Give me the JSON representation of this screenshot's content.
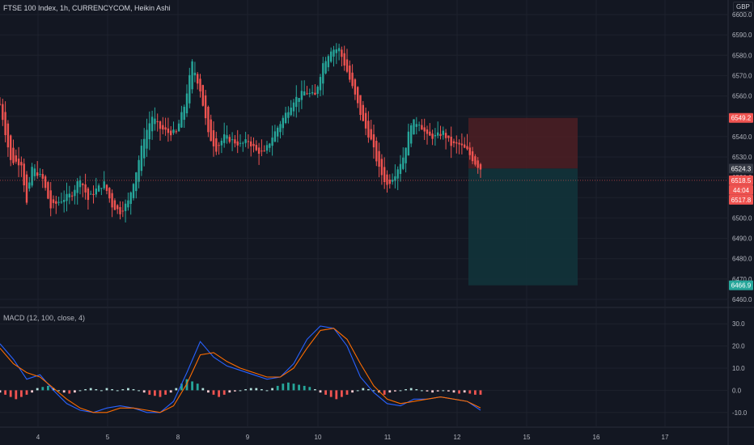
{
  "header": {
    "title": "FTSE 100 Index, 1h, CURRENCYCOM, Heikin Ashi",
    "currency": "GBP"
  },
  "macd_title": "MACD (12, 100, close, 4)",
  "colors": {
    "background": "#131722",
    "up": "#26a69a",
    "down": "#ef5350",
    "macd_line": "#2962ff",
    "signal_line": "#ff6d00",
    "stop_zone": "#4a1e24",
    "target_zone": "#12333a",
    "grid": "#1e222d"
  },
  "chart_data": [
    {
      "type": "candlestick",
      "title": "FTSE 100 Index, 1h, CURRENCYCOM, Heikin Ashi",
      "ylim": [
        6460,
        6600
      ],
      "y_ticks": [
        6460,
        6470,
        6480,
        6490,
        6500,
        6510,
        6520,
        6530,
        6540,
        6550,
        6560,
        6570,
        6580,
        6590,
        6600
      ],
      "x_ticks": [
        "4",
        "5",
        "8",
        "9",
        "10",
        "11",
        "12",
        "15",
        "16",
        "17"
      ],
      "close_path": [
        [
          0,
          6556
        ],
        [
          4,
          6528
        ],
        [
          8,
          6527
        ],
        [
          10,
          6507
        ],
        [
          12,
          6525
        ],
        [
          16,
          6519
        ],
        [
          19,
          6505
        ],
        [
          22,
          6508
        ],
        [
          27,
          6512
        ],
        [
          30,
          6520
        ],
        [
          33,
          6509
        ],
        [
          36,
          6514
        ],
        [
          39,
          6517
        ],
        [
          42,
          6506
        ],
        [
          45,
          6503
        ],
        [
          48,
          6508
        ],
        [
          51,
          6523
        ],
        [
          54,
          6540
        ],
        [
          57,
          6550
        ],
        [
          60,
          6544
        ],
        [
          63,
          6542
        ],
        [
          66,
          6542
        ],
        [
          69,
          6555
        ],
        [
          72,
          6576
        ],
        [
          75,
          6563
        ],
        [
          78,
          6541
        ],
        [
          81,
          6534
        ],
        [
          84,
          6540
        ],
        [
          87,
          6538
        ],
        [
          90,
          6536
        ],
        [
          93,
          6538
        ],
        [
          96,
          6533
        ],
        [
          99,
          6532
        ],
        [
          102,
          6540
        ],
        [
          106,
          6549
        ],
        [
          110,
          6558
        ],
        [
          114,
          6562
        ],
        [
          118,
          6560
        ],
        [
          121,
          6576
        ],
        [
          124,
          6583
        ],
        [
          127,
          6583
        ],
        [
          130,
          6572
        ],
        [
          133,
          6560
        ],
        [
          136,
          6547
        ],
        [
          139,
          6538
        ],
        [
          142,
          6524
        ],
        [
          145,
          6516
        ],
        [
          148,
          6522
        ],
        [
          151,
          6530
        ],
        [
          154,
          6547
        ],
        [
          157,
          6547
        ],
        [
          160,
          6540
        ],
        [
          163,
          6540
        ],
        [
          166,
          6542
        ],
        [
          169,
          6536
        ],
        [
          172,
          6536
        ],
        [
          175,
          6533
        ],
        [
          178,
          6527
        ],
        [
          180,
          6524.3
        ]
      ],
      "last_price": 6524.3,
      "price_labels": [
        6549.2,
        6524.3,
        6518.5,
        6517.8,
        6466.9
      ],
      "countdown": "44:04",
      "position": {
        "side": "short",
        "entry": 6524.3,
        "stop": 6549.2,
        "target": 6466.9
      }
    },
    {
      "type": "line",
      "title": "MACD (12, 100, close, 4)",
      "ylim": [
        -13,
        33
      ],
      "y_ticks": [
        -10.0,
        0.0,
        10.0,
        20.0,
        30.0
      ],
      "y_tick_labels": [
        "-10.0",
        "0.0",
        "10.0",
        "20.0",
        "30.0"
      ],
      "series": [
        {
          "values": [
            [
              0,
              21
            ],
            [
              5,
              14
            ],
            [
              10,
              5
            ],
            [
              15,
              7
            ],
            [
              20,
              0
            ],
            [
              25,
              -6
            ],
            [
              30,
              -9
            ],
            [
              35,
              -10
            ],
            [
              40,
              -8
            ],
            [
              45,
              -7
            ],
            [
              50,
              -8
            ],
            [
              55,
              -10
            ],
            [
              60,
              -10
            ],
            [
              65,
              -5
            ],
            [
              70,
              8
            ],
            [
              75,
              22
            ],
            [
              80,
              15
            ],
            [
              85,
              11
            ],
            [
              90,
              9
            ],
            [
              95,
              7
            ],
            [
              100,
              5
            ],
            [
              105,
              6
            ],
            [
              110,
              12
            ],
            [
              115,
              23
            ],
            [
              120,
              29
            ],
            [
              125,
              28
            ],
            [
              130,
              20
            ],
            [
              135,
              6
            ],
            [
              140,
              -1
            ],
            [
              145,
              -6
            ],
            [
              150,
              -7
            ],
            [
              155,
              -4
            ],
            [
              160,
              -4
            ],
            [
              165,
              -3
            ],
            [
              170,
              -4
            ],
            [
              175,
              -5
            ],
            [
              180,
              -9
            ]
          ]
        },
        {
          "values": [
            [
              0,
              19
            ],
            [
              5,
              12
            ],
            [
              10,
              8
            ],
            [
              15,
              6
            ],
            [
              20,
              1
            ],
            [
              25,
              -4
            ],
            [
              30,
              -8
            ],
            [
              35,
              -10
            ],
            [
              40,
              -10
            ],
            [
              45,
              -8
            ],
            [
              50,
              -8
            ],
            [
              55,
              -9
            ],
            [
              60,
              -10
            ],
            [
              65,
              -7
            ],
            [
              70,
              3
            ],
            [
              75,
              16
            ],
            [
              80,
              17
            ],
            [
              85,
              13
            ],
            [
              90,
              10
            ],
            [
              95,
              8
            ],
            [
              100,
              6
            ],
            [
              105,
              6
            ],
            [
              110,
              10
            ],
            [
              115,
              19
            ],
            [
              120,
              27
            ],
            [
              125,
              28
            ],
            [
              130,
              23
            ],
            [
              135,
              12
            ],
            [
              140,
              2
            ],
            [
              145,
              -4
            ],
            [
              150,
              -6
            ],
            [
              155,
              -5
            ],
            [
              160,
              -4
            ],
            [
              165,
              -3
            ],
            [
              170,
              -4
            ],
            [
              175,
              -5
            ],
            [
              180,
              -8
            ]
          ]
        }
      ],
      "histogram": [
        [
          0,
          -1
        ],
        [
          2,
          -2
        ],
        [
          4,
          -3
        ],
        [
          6,
          -4
        ],
        [
          8,
          -3
        ],
        [
          10,
          -2
        ],
        [
          12,
          -1
        ],
        [
          14,
          1
        ],
        [
          16,
          1.5
        ],
        [
          18,
          2
        ],
        [
          20,
          1
        ],
        [
          22,
          0
        ],
        [
          24,
          -1
        ],
        [
          26,
          -1.5
        ],
        [
          28,
          -1
        ],
        [
          30,
          0
        ],
        [
          32,
          0.5
        ],
        [
          34,
          1
        ],
        [
          36,
          0.5
        ],
        [
          38,
          0
        ],
        [
          40,
          1
        ],
        [
          42,
          0.5
        ],
        [
          44,
          0
        ],
        [
          46,
          0.5
        ],
        [
          48,
          1
        ],
        [
          50,
          0.5
        ],
        [
          52,
          0
        ],
        [
          54,
          -1
        ],
        [
          56,
          -2
        ],
        [
          58,
          -2.5
        ],
        [
          60,
          -3
        ],
        [
          62,
          -2
        ],
        [
          64,
          -1
        ],
        [
          66,
          1
        ],
        [
          68,
          3
        ],
        [
          70,
          5
        ],
        [
          72,
          4
        ],
        [
          74,
          3
        ],
        [
          76,
          1
        ],
        [
          78,
          -1
        ],
        [
          80,
          -2
        ],
        [
          82,
          -3
        ],
        [
          84,
          -2
        ],
        [
          86,
          -1
        ],
        [
          88,
          -0.5
        ],
        [
          90,
          0
        ],
        [
          92,
          0.5
        ],
        [
          94,
          1
        ],
        [
          96,
          1
        ],
        [
          98,
          0.5
        ],
        [
          100,
          0
        ],
        [
          102,
          1
        ],
        [
          104,
          2
        ],
        [
          106,
          3
        ],
        [
          108,
          3.5
        ],
        [
          110,
          3
        ],
        [
          112,
          2.5
        ],
        [
          114,
          2
        ],
        [
          116,
          1.5
        ],
        [
          118,
          0.5
        ],
        [
          120,
          -1
        ],
        [
          122,
          -2
        ],
        [
          124,
          -3
        ],
        [
          126,
          -4
        ],
        [
          128,
          -3
        ],
        [
          130,
          -2
        ],
        [
          132,
          -1
        ],
        [
          134,
          0
        ],
        [
          136,
          1
        ],
        [
          138,
          0.5
        ],
        [
          140,
          0
        ],
        [
          142,
          -1
        ],
        [
          144,
          -2
        ],
        [
          146,
          -1
        ],
        [
          148,
          -0.5
        ],
        [
          150,
          0
        ],
        [
          152,
          0.5
        ],
        [
          154,
          1
        ],
        [
          156,
          0.5
        ],
        [
          158,
          0
        ],
        [
          160,
          -0.5
        ],
        [
          162,
          -1
        ],
        [
          164,
          -0.5
        ],
        [
          166,
          0
        ],
        [
          168,
          -0.5
        ],
        [
          170,
          -1
        ],
        [
          172,
          -1.5
        ],
        [
          174,
          -1
        ],
        [
          176,
          -1.5
        ],
        [
          178,
          -2
        ],
        [
          180,
          -2
        ]
      ]
    }
  ]
}
